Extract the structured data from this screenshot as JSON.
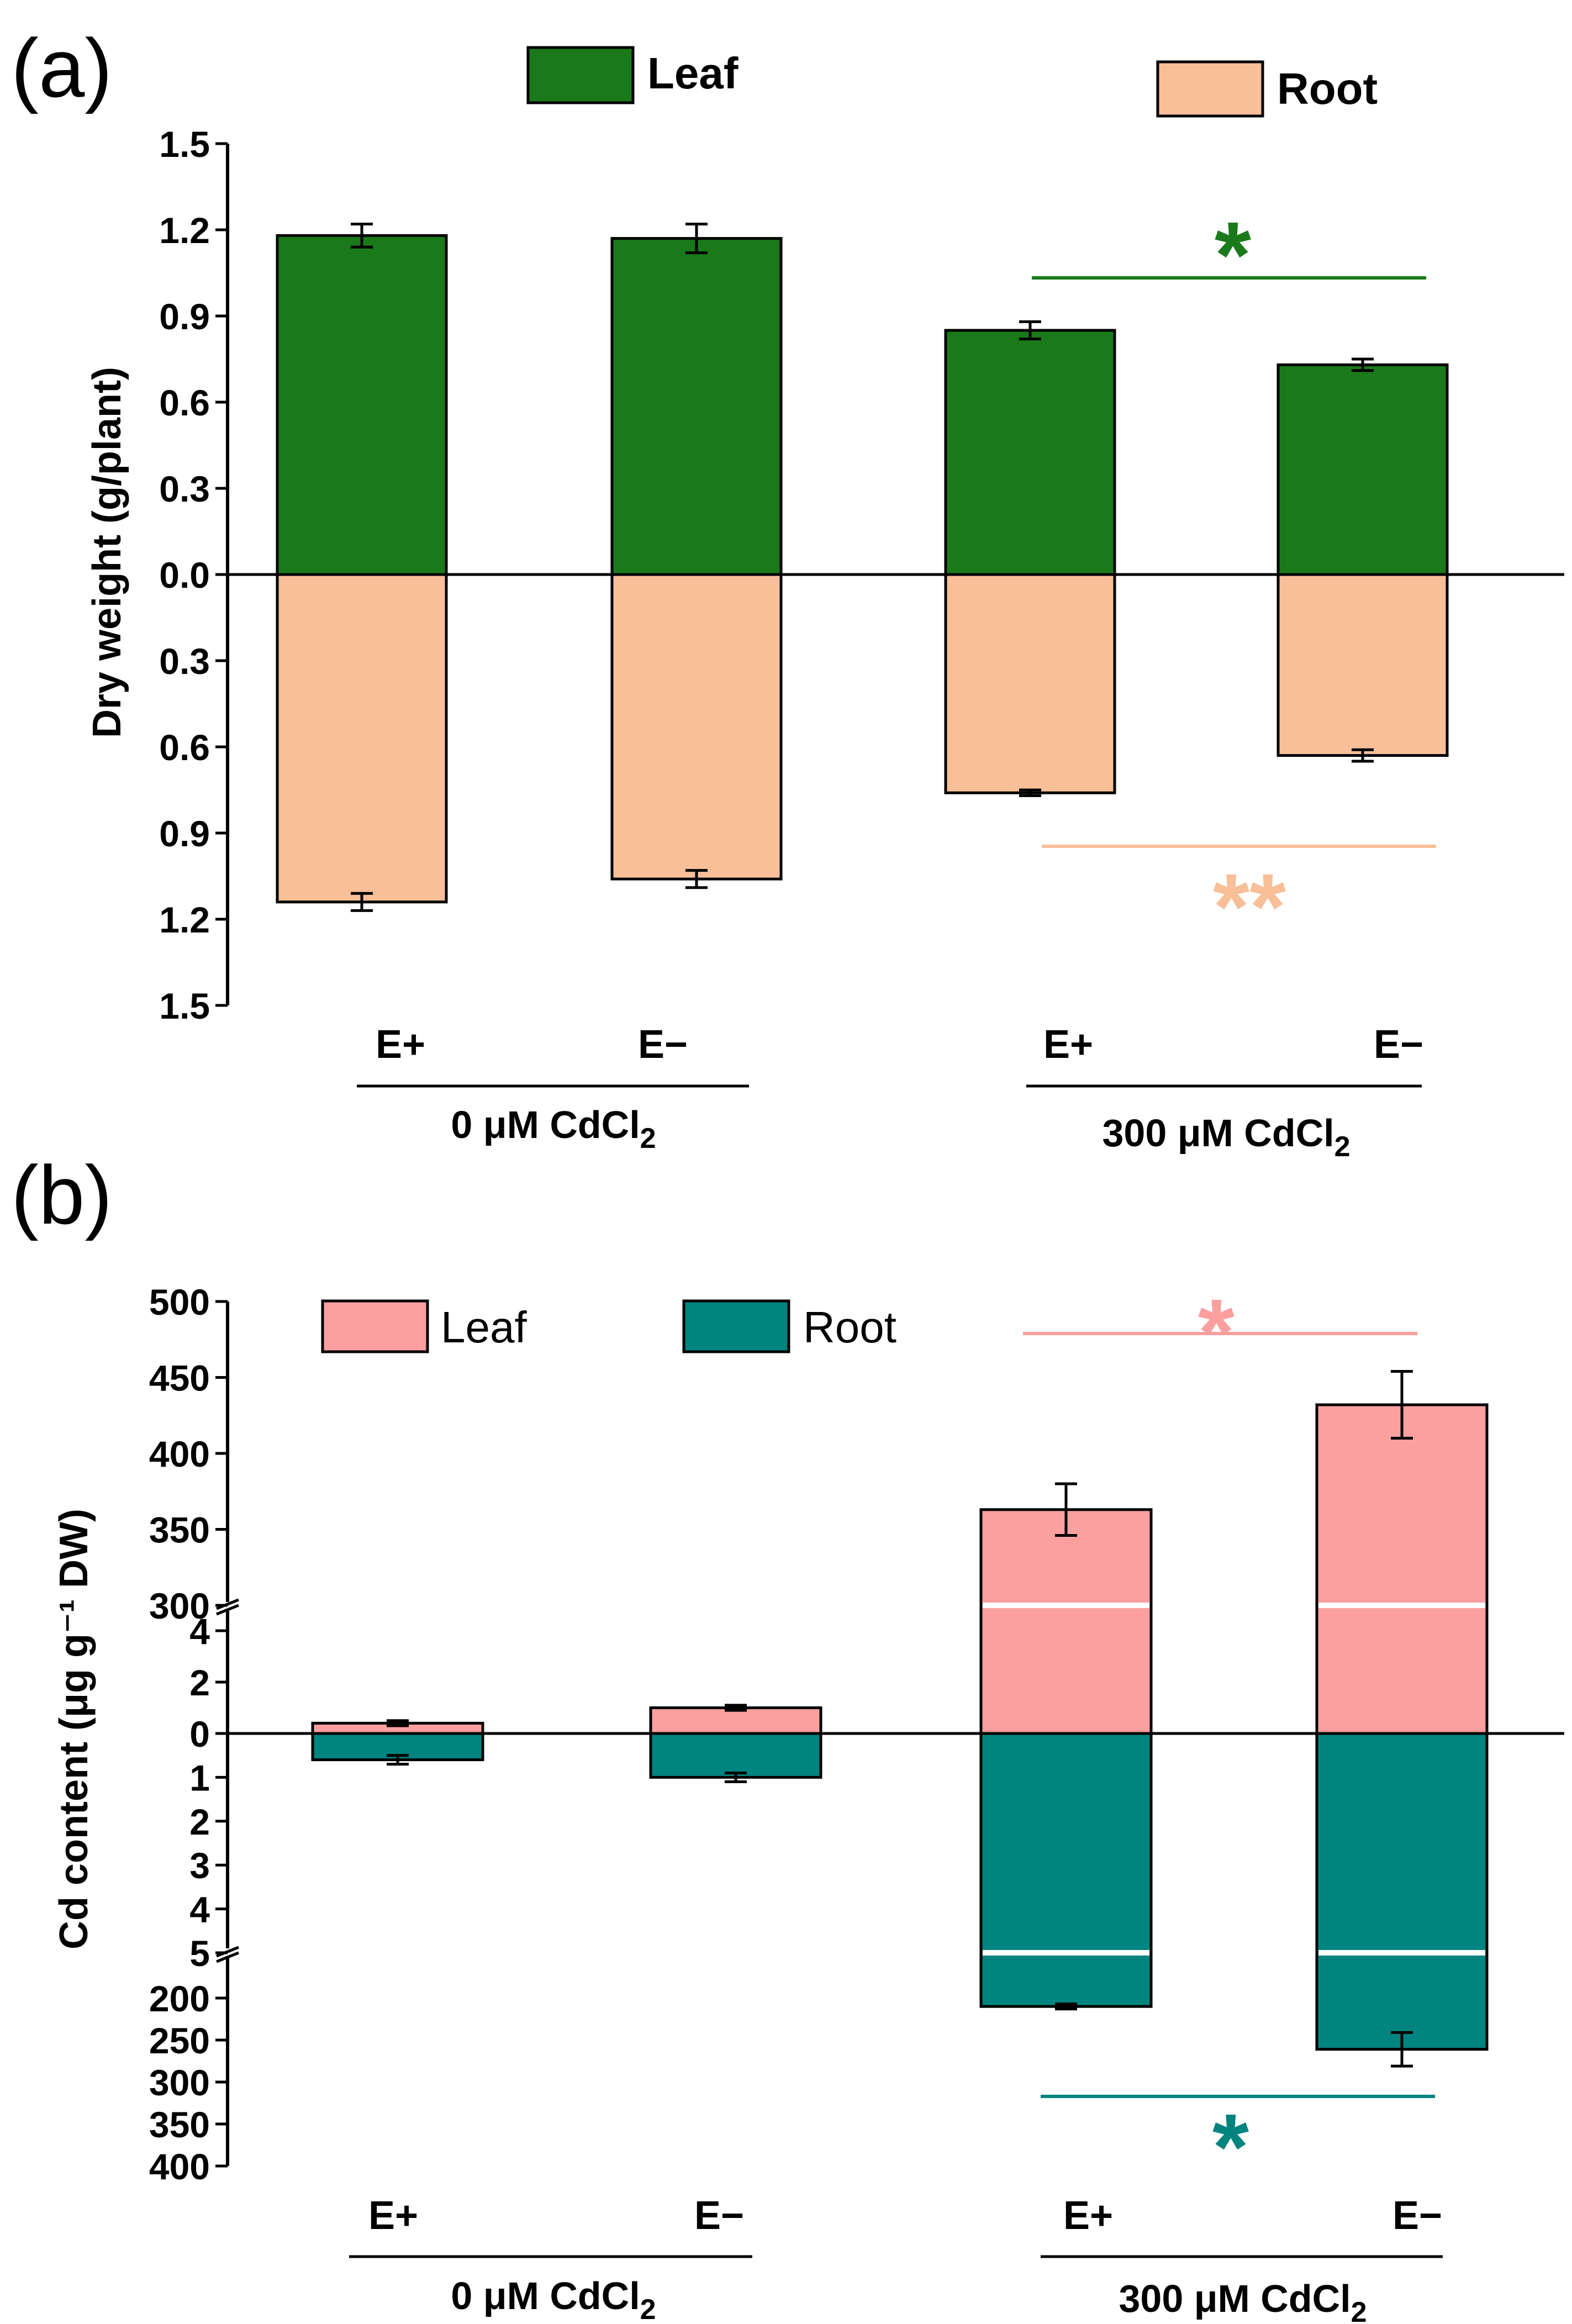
{
  "colors": {
    "leaf_a": "#1a7a1a",
    "root_a": "#f9bf99",
    "leaf_b": "#fb9f9f",
    "root_b": "#00847f",
    "axis": "#000000"
  },
  "chart_data": [
    {
      "panel_label": "(a)",
      "type": "bar",
      "stacked_diverging": true,
      "ylabel": "Dry weight (g/plant)",
      "ylim": [
        -1.5,
        1.5
      ],
      "ytick_values": [
        1.5,
        1.2,
        0.9,
        0.6,
        0.3,
        0.0,
        -0.3,
        -0.6,
        -0.9,
        -1.2,
        -1.5
      ],
      "ytick_labels": [
        "1.5",
        "1.2",
        "0.9",
        "0.6",
        "0.3",
        "0.0",
        "0.3",
        "0.6",
        "0.9",
        "1.2",
        "1.5"
      ],
      "categories": [
        "E+",
        "E−",
        "E+",
        "E−"
      ],
      "groups": [
        {
          "label": "0 μM CdCl",
          "subscript": "2",
          "members": [
            0,
            1
          ]
        },
        {
          "label": "300 μM CdCl",
          "subscript": "2",
          "members": [
            2,
            3
          ]
        }
      ],
      "series": [
        {
          "name": "Leaf",
          "direction": "up",
          "values": [
            1.18,
            1.17,
            0.85,
            0.73
          ],
          "errors": [
            0.04,
            0.05,
            0.03,
            0.02
          ]
        },
        {
          "name": "Root",
          "direction": "down",
          "values": [
            1.14,
            1.06,
            0.76,
            0.63
          ],
          "errors": [
            0.03,
            0.03,
            0.01,
            0.02
          ]
        }
      ],
      "annotations": [
        {
          "text": "*",
          "series": "Leaf",
          "between": [
            2,
            3
          ]
        },
        {
          "text": "**",
          "series": "Root",
          "between": [
            2,
            3
          ]
        }
      ],
      "legend_placement": "top"
    },
    {
      "panel_label": "(b)",
      "type": "bar",
      "stacked_diverging": true,
      "broken_axis": true,
      "ylabel": "Cd content (μg g⁻¹ DW)",
      "ytick_labels_upper": [
        "500",
        "450",
        "400",
        "350",
        "300"
      ],
      "ytick_labels_mid_top": [
        "4",
        "2",
        "0"
      ],
      "ytick_labels_mid_bottom": [
        "1",
        "2",
        "3",
        "4",
        "5"
      ],
      "ytick_labels_lower": [
        "200",
        "250",
        "300",
        "350",
        "400"
      ],
      "categories": [
        "E+",
        "E−",
        "E+",
        "E−"
      ],
      "groups": [
        {
          "label": "0 μM CdCl",
          "subscript": "2",
          "members": [
            0,
            1
          ]
        },
        {
          "label": "300 μM CdCl",
          "subscript": "2",
          "members": [
            2,
            3
          ]
        }
      ],
      "series": [
        {
          "name": "Leaf",
          "direction": "up",
          "values": [
            0.4,
            1.0,
            363,
            432
          ],
          "errors": [
            0.1,
            0.1,
            17,
            22
          ]
        },
        {
          "name": "Root",
          "direction": "down",
          "values": [
            0.6,
            1.0,
            210,
            261
          ],
          "errors": [
            0.1,
            0.1,
            3,
            20
          ]
        }
      ],
      "annotations": [
        {
          "text": "*",
          "series": "Leaf",
          "between": [
            2,
            3
          ]
        },
        {
          "text": "*",
          "series": "Root",
          "between": [
            2,
            3
          ]
        }
      ],
      "legend_placement": "top"
    }
  ]
}
